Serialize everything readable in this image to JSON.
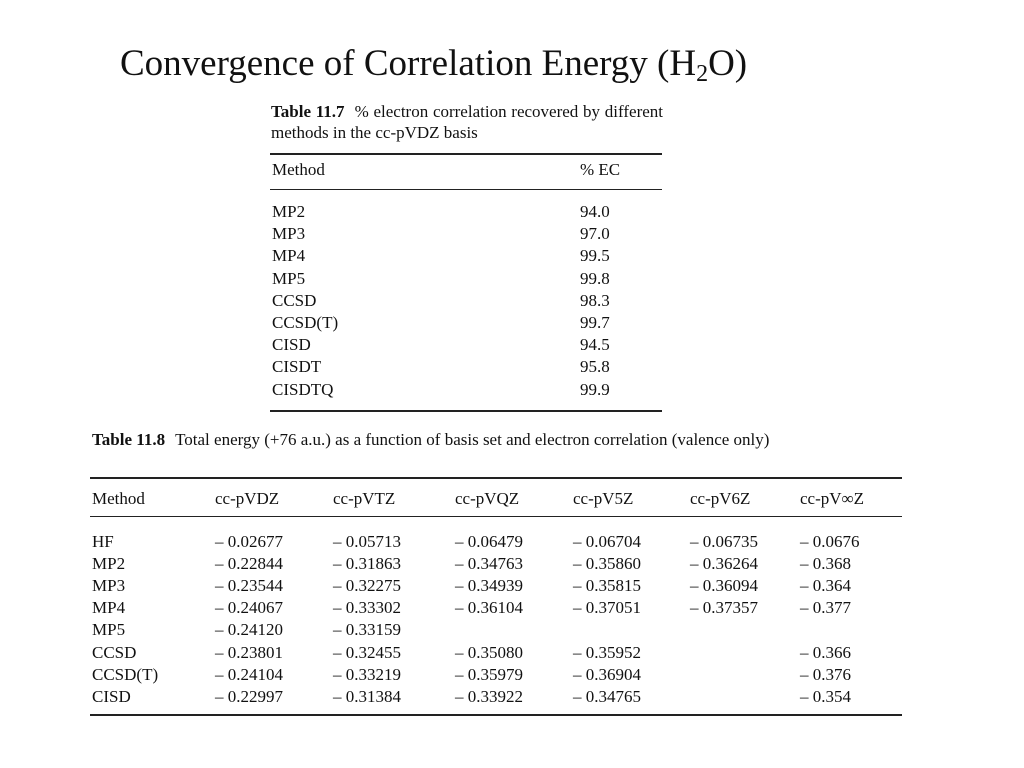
{
  "title": {
    "before": "Convergence of Correlation Energy (H",
    "sub": "2",
    "after": "O)"
  },
  "table1": {
    "label": "Table 11.7",
    "caption": "% electron correlation recovered by different methods in the cc-pVDZ basis",
    "headers": [
      "Method",
      "% EC"
    ],
    "rows": [
      [
        "MP2",
        "94.0"
      ],
      [
        "MP3",
        "97.0"
      ],
      [
        "MP4",
        "99.5"
      ],
      [
        "MP5",
        "99.8"
      ],
      [
        "CCSD",
        "98.3"
      ],
      [
        "CCSD(T)",
        "99.7"
      ],
      [
        "CISD",
        "94.5"
      ],
      [
        "CISDT",
        "95.8"
      ],
      [
        "CISDTQ",
        "99.9"
      ]
    ]
  },
  "table2": {
    "label": "Table 11.8",
    "caption": "Total energy (+76 a.u.) as a function of basis set and electron correlation (valence only)",
    "headers": [
      "Method",
      "cc-pVDZ",
      "cc-pVTZ",
      "cc-pVQZ",
      "cc-pV5Z",
      "cc-pV6Z",
      "cc-pV∞Z"
    ],
    "rows": [
      [
        "HF",
        "– 0.02677",
        "– 0.05713",
        "– 0.06479",
        "– 0.06704",
        "– 0.06735",
        "– 0.0676"
      ],
      [
        "MP2",
        "– 0.22844",
        "– 0.31863",
        "– 0.34763",
        "– 0.35860",
        "– 0.36264",
        "– 0.368"
      ],
      [
        "MP3",
        "– 0.23544",
        "– 0.32275",
        "– 0.34939",
        "– 0.35815",
        "– 0.36094",
        "– 0.364"
      ],
      [
        "MP4",
        "– 0.24067",
        "– 0.33302",
        "– 0.36104",
        "– 0.37051",
        "– 0.37357",
        "– 0.377"
      ],
      [
        "MP5",
        "– 0.24120",
        "– 0.33159",
        null,
        null,
        null,
        null
      ],
      [
        "CCSD",
        "– 0.23801",
        "– 0.32455",
        "– 0.35080",
        "– 0.35952",
        null,
        "– 0.366"
      ],
      [
        "CCSD(T)",
        "– 0.24104",
        "– 0.33219",
        "– 0.35979",
        "– 0.36904",
        null,
        "– 0.376"
      ],
      [
        "CISD",
        "– 0.22997",
        "– 0.31384",
        "– 0.33922",
        "– 0.34765",
        null,
        "– 0.354"
      ]
    ]
  }
}
